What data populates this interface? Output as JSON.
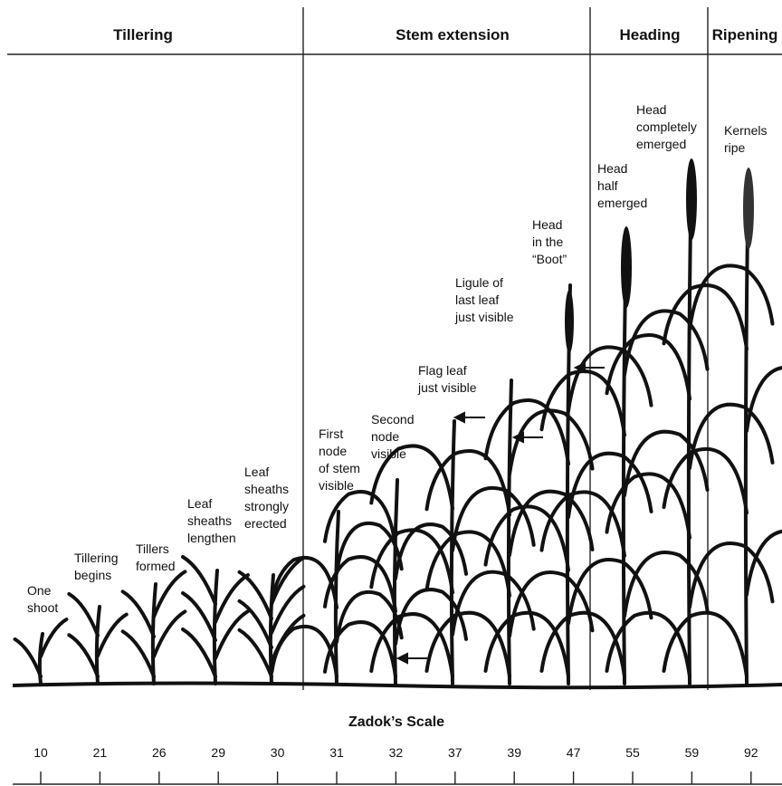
{
  "header": {
    "stages": [
      "Tillering",
      "Stem extension",
      "Heading",
      "Ripening"
    ]
  },
  "annotations": [
    [
      "One",
      "shoot"
    ],
    [
      "Tillering",
      "begins"
    ],
    [
      "Tillers",
      "formed"
    ],
    [
      "Leaf",
      "sheaths",
      "lengthen"
    ],
    [
      "Leaf",
      "sheaths",
      "strongly",
      "erected"
    ],
    [
      "First",
      "node",
      "of stem",
      "visible"
    ],
    [
      "Second",
      "node",
      "visible"
    ],
    [
      "Flag leaf",
      "just visible"
    ],
    [
      "Ligule of",
      "last leaf",
      "just visible"
    ],
    [
      "Head",
      "in the",
      "“Boot”"
    ],
    [
      "Head",
      "half",
      "emerged"
    ],
    [
      "Head",
      "completely",
      "emerged"
    ],
    [
      "Kernels",
      "ripe"
    ]
  ],
  "scale": {
    "title": "Zadok’s Scale",
    "values": [
      10,
      21,
      26,
      29,
      30,
      31,
      32,
      37,
      39,
      47,
      55,
      59,
      92
    ]
  }
}
